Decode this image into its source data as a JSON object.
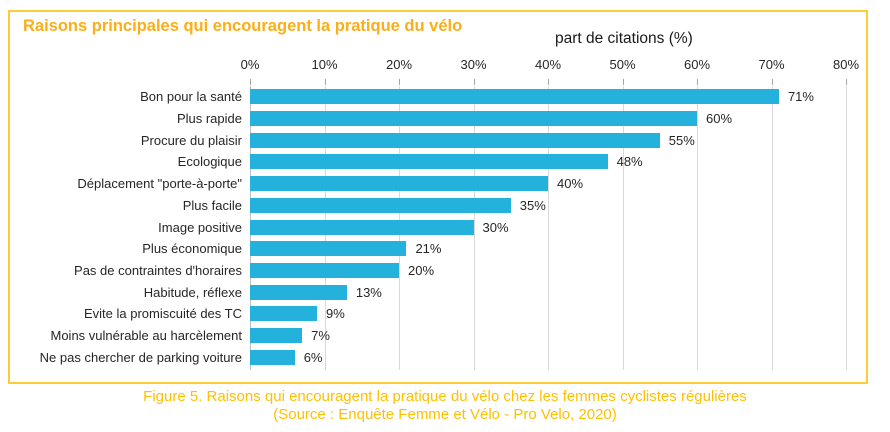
{
  "figure": {
    "title": "Raisons principales qui encouragent la pratique du vélo",
    "axis_title": "part de citations (%)",
    "caption_line1": "Figure 5. Raisons qui encouragent la pratique du vélo chez les femmes cyclistes régulières",
    "caption_line2": "(Source : Enquête Femme et Vélo - Pro Velo, 2020)"
  },
  "colors": {
    "bar": "#24B1DC",
    "border": "#FFCC33",
    "title": "#FBAE17",
    "caption": "#FFC000",
    "gridline": "#D9D9D9",
    "text": "#262626"
  },
  "chart_data": {
    "type": "bar",
    "orientation": "horizontal",
    "title": "Raisons principales qui encouragent la pratique du vélo",
    "xlabel": "part de citations (%)",
    "categories": [
      "Bon pour la santé",
      "Plus rapide",
      "Procure du plaisir",
      "Ecologique",
      "Déplacement \"porte-à-porte\"",
      "Plus facile",
      "Image positive",
      "Plus économique",
      "Pas de contraintes d'horaires",
      "Habitude, réflexe",
      "Evite la promiscuité des TC",
      "Moins vulnérable au harcèlement",
      "Ne pas chercher de parking voiture"
    ],
    "values": [
      71,
      60,
      55,
      48,
      40,
      35,
      30,
      21,
      20,
      13,
      9,
      7,
      6
    ],
    "value_labels": [
      "71%",
      "60%",
      "55%",
      "48%",
      "40%",
      "35%",
      "30%",
      "21%",
      "20%",
      "13%",
      "9%",
      "7%",
      "6%"
    ],
    "xlim": [
      0,
      80
    ],
    "xticks": [
      0,
      10,
      20,
      30,
      40,
      50,
      60,
      70,
      80
    ],
    "xtick_labels": [
      "0%",
      "10%",
      "20%",
      "30%",
      "40%",
      "50%",
      "60%",
      "70%",
      "80%"
    ],
    "grid": true,
    "legend": false,
    "bar_color": "#24B1DC"
  }
}
